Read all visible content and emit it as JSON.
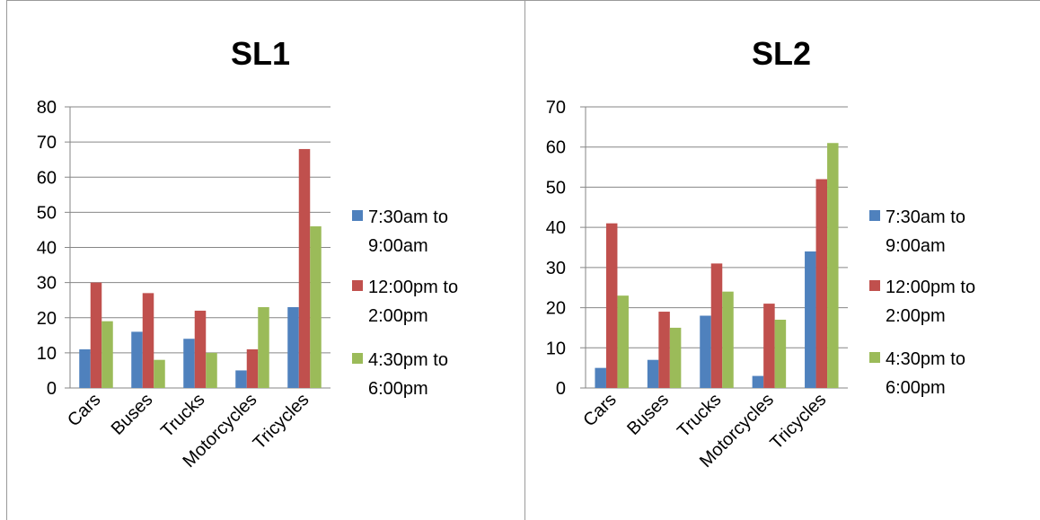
{
  "chart_data": [
    {
      "type": "bar",
      "title": "SL1",
      "categories": [
        "Cars",
        "Buses",
        "Trucks",
        "Motorcycles",
        "Tricycles"
      ],
      "series": [
        {
          "name": "7:30am to 9:00am",
          "color": "#4f81bd",
          "values": [
            11,
            16,
            14,
            5,
            23
          ]
        },
        {
          "name": "12:00pm to 2:00pm",
          "color": "#c0504d",
          "values": [
            30,
            27,
            22,
            11,
            68
          ]
        },
        {
          "name": "4:30pm to 6:00pm",
          "color": "#9bbb59",
          "values": [
            19,
            8,
            10,
            23,
            46
          ]
        }
      ],
      "ylim": [
        0,
        80
      ],
      "yticks": [
        0,
        10,
        20,
        30,
        40,
        50,
        60,
        70,
        80
      ],
      "grid": true,
      "legend": "right"
    },
    {
      "type": "bar",
      "title": "SL2",
      "categories": [
        "Cars",
        "Buses",
        "Trucks",
        "Motorcycles",
        "Tricycles"
      ],
      "series": [
        {
          "name": "7:30am to 9:00am",
          "color": "#4f81bd",
          "values": [
            5,
            7,
            18,
            3,
            34
          ]
        },
        {
          "name": "12:00pm to 2:00pm",
          "color": "#c0504d",
          "values": [
            41,
            19,
            31,
            21,
            52
          ]
        },
        {
          "name": "4:30pm to 6:00pm",
          "color": "#9bbb59",
          "values": [
            23,
            15,
            24,
            17,
            61
          ]
        }
      ],
      "ylim": [
        0,
        70
      ],
      "yticks": [
        0,
        10,
        20,
        30,
        40,
        50,
        60,
        70
      ],
      "grid": true,
      "legend": "right"
    }
  ],
  "legend_lines": [
    [
      "7:30am to",
      "9:00am"
    ],
    [
      "12:00pm to",
      "2:00pm"
    ],
    [
      "4:30pm to",
      "6:00pm"
    ]
  ]
}
